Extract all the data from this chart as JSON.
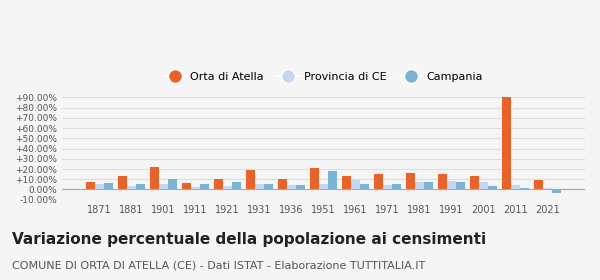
{
  "years": [
    1871,
    1881,
    1901,
    1911,
    1921,
    1931,
    1936,
    1951,
    1961,
    1971,
    1981,
    1991,
    2001,
    2011,
    2021
  ],
  "orta": [
    7.5,
    13.0,
    21.5,
    6.5,
    10.0,
    19.0,
    10.5,
    21.0,
    13.0,
    15.0,
    16.0,
    15.0,
    13.5,
    90.0,
    9.5
  ],
  "provincia": [
    5.5,
    3.5,
    5.0,
    2.5,
    3.5,
    5.0,
    4.5,
    5.0,
    9.5,
    4.5,
    7.5,
    8.0,
    7.0,
    4.5,
    1.5
  ],
  "campania": [
    6.0,
    5.5,
    10.0,
    5.0,
    7.0,
    5.5,
    4.0,
    18.0,
    5.5,
    5.5,
    7.5,
    7.5,
    3.0,
    1.5,
    -3.0
  ],
  "orta_color": "#e8622a",
  "provincia_color": "#c5d8f0",
  "campania_color": "#7ab3d4",
  "bg_color": "#f5f5f5",
  "grid_color": "#dddddd",
  "ylim": [
    -10,
    95
  ],
  "yticks": [
    -10,
    0,
    10,
    20,
    30,
    40,
    50,
    60,
    70,
    80,
    90
  ],
  "ytick_labels": [
    "-10.00%",
    "0.00%",
    "+10.00%",
    "+20.00%",
    "+30.00%",
    "+40.00%",
    "+50.00%",
    "+60.00%",
    "+70.00%",
    "+80.00%",
    "+90.00%"
  ],
  "legend_labels": [
    "Orta di Atella",
    "Provincia di CE",
    "Campania"
  ],
  "title": "Variazione percentuale della popolazione ai censimenti",
  "subtitle": "COMUNE DI ORTA DI ATELLA (CE) - Dati ISTAT - Elaborazione TUTTITALIA.IT",
  "title_fontsize": 11,
  "subtitle_fontsize": 8
}
